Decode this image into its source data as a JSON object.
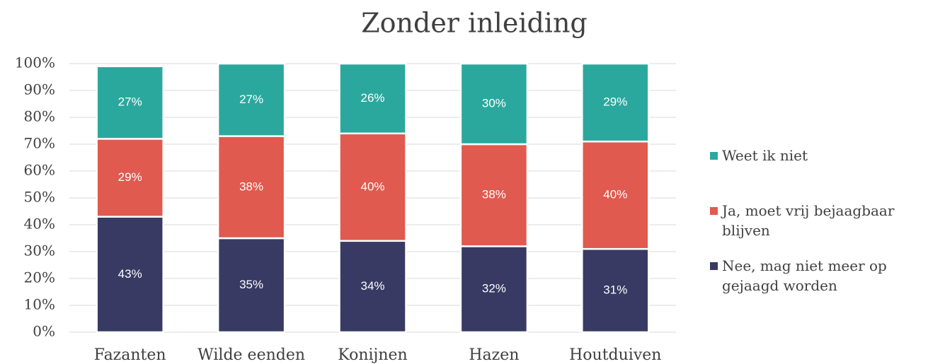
{
  "chart_data": {
    "type": "stacked_bar",
    "title": "Zonder inleiding",
    "categories": [
      "Fazanten",
      "Wilde eenden",
      "Konijnen",
      "Hazen",
      "Houtduiven"
    ],
    "series": [
      {
        "name": "Nee, mag niet meer op gejaagd worden",
        "color": "#383a63",
        "values": [
          43,
          35,
          34,
          32,
          31
        ],
        "value_labels": [
          "43%",
          "35%",
          "34%",
          "32%",
          "31%"
        ]
      },
      {
        "name": "Ja, moet vrij bejaagbaar blijven",
        "color": "#e05a4f",
        "values": [
          29,
          38,
          40,
          38,
          40
        ],
        "value_labels": [
          "29%",
          "38%",
          "40%",
          "38%",
          "40%"
        ]
      },
      {
        "name": "Weet ik niet",
        "color": "#2ba89d",
        "values": [
          27,
          27,
          26,
          30,
          29
        ],
        "value_labels": [
          "27%",
          "27%",
          "26%",
          "30%",
          "29%"
        ]
      }
    ],
    "ylim": [
      0,
      100
    ],
    "yticks": [
      {
        "value": 0,
        "label": "0%"
      },
      {
        "value": 10,
        "label": "10%"
      },
      {
        "value": 20,
        "label": "20%"
      },
      {
        "value": 30,
        "label": "30%"
      },
      {
        "value": 40,
        "label": "40%"
      },
      {
        "value": 50,
        "label": "50%"
      },
      {
        "value": 60,
        "label": "60%"
      },
      {
        "value": 70,
        "label": "70%"
      },
      {
        "value": 80,
        "label": "80%"
      },
      {
        "value": 90,
        "label": "90%"
      },
      {
        "value": 100,
        "label": "100%"
      }
    ],
    "grid": true,
    "legend": "right"
  }
}
